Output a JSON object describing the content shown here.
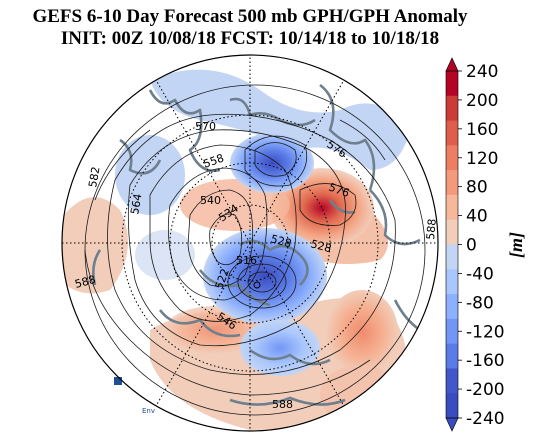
{
  "title_line1": "GEFS 6-10 Day Forecast 500 mb GPH/GPH Anomaly",
  "title_line2": "INIT: 00Z 10/08/18   FCST: 10/14/18 to 10/18/18",
  "colorbar": {
    "unit_label": "[m]",
    "tick_labels": [
      "240",
      "200",
      "160",
      "120",
      "80",
      "40",
      "0",
      "-40",
      "-80",
      "-120",
      "-160",
      "-200",
      "-240"
    ],
    "min": -240,
    "max": 240,
    "colors_high": [
      "#b40426",
      "#cb3b37",
      "#dd5f4b",
      "#ec7f63",
      "#f49a7b",
      "#f7b79b",
      "#f1cdba"
    ],
    "colors_low": [
      "#c3d5f4",
      "#aac7fd",
      "#8db0fe",
      "#7396f5",
      "#5b7ce6",
      "#4257c9",
      "#3b4cc0"
    ]
  },
  "contour_labels": [
    "570",
    "576",
    "582",
    "558",
    "540",
    "564",
    "534",
    "576",
    "528",
    "516",
    "522",
    "546",
    "588",
    "588",
    "588",
    "528"
  ],
  "logo_fragment": "Env"
}
